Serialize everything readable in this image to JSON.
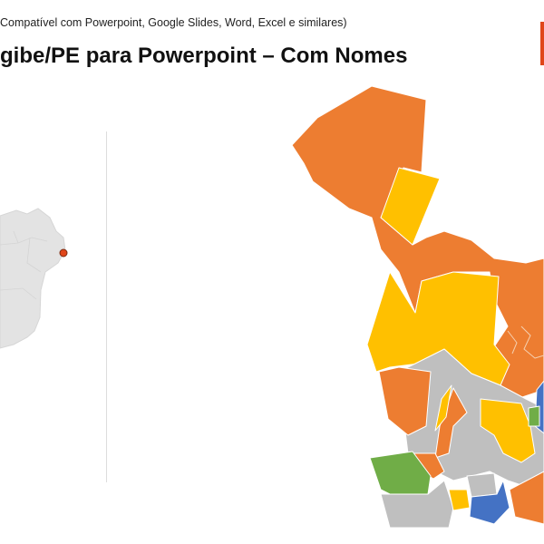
{
  "slide": {
    "subtitle": "Compatível com Powerpoint, Google Slides, Word, Excel e similares)",
    "title": "gibe/PE para Powerpoint – Com Nomes"
  },
  "colors": {
    "orange": "#ED7D31",
    "yellow": "#FFC000",
    "gray": "#BFBFBF",
    "blue": "#4472C4",
    "green": "#70AD47",
    "locator_map": "#E3E3E3",
    "locator_dot": "#E0461A",
    "accent_bar": "#E0461A"
  },
  "icons": {
    "location_marker": "location-dot-icon"
  }
}
